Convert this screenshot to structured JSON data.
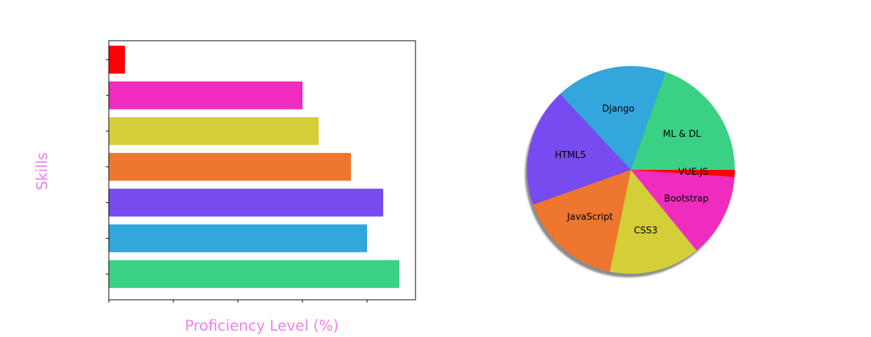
{
  "chart_data": [
    {
      "type": "bar",
      "orientation": "horizontal",
      "xlabel": "Proficiency Level (%)",
      "ylabel": "Skills",
      "xlim": [
        0,
        95
      ],
      "show_tick_labels": false,
      "grid": false,
      "bars": [
        {
          "value": 90,
          "color": "#3ad184"
        },
        {
          "value": 80,
          "color": "#33a6dc"
        },
        {
          "value": 85,
          "color": "#774bef"
        },
        {
          "value": 75,
          "color": "#ef762e"
        },
        {
          "value": 65,
          "color": "#d4cf37"
        },
        {
          "value": 60,
          "color": "#f02cbf"
        },
        {
          "value": 5,
          "color": "#ff0000"
        }
      ]
    },
    {
      "type": "pie",
      "shadow": true,
      "start_angle_deg": 0,
      "slices": [
        {
          "label": "ML & DL",
          "value": 90,
          "color": "#3ad184"
        },
        {
          "label": "Django",
          "value": 80,
          "color": "#33a6dc"
        },
        {
          "label": "HTML5",
          "value": 85,
          "color": "#774bef"
        },
        {
          "label": "JavaScript",
          "value": 75,
          "color": "#ef762e"
        },
        {
          "label": "CSS3",
          "value": 65,
          "color": "#d4cf37"
        },
        {
          "label": "Bootstrap",
          "value": 60,
          "color": "#f02cbf"
        },
        {
          "label": "VUE.JS",
          "value": 5,
          "color": "#ff0000"
        }
      ]
    }
  ]
}
